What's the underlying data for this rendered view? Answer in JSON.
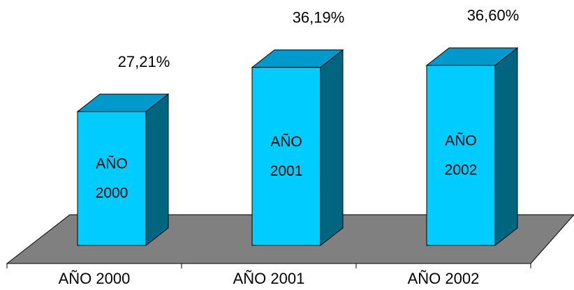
{
  "chart_data": {
    "type": "bar3d",
    "categories": [
      "AÑO 2000",
      "AÑO 2001",
      "AÑO 2002"
    ],
    "values": [
      27.21,
      36.19,
      36.6
    ],
    "value_labels": [
      "27,21%",
      "36,19%",
      "36,60%"
    ],
    "bar_labels": [
      [
        "AÑO",
        "2000"
      ],
      [
        "AÑO",
        "2001"
      ],
      [
        "AÑO",
        "2002"
      ]
    ],
    "color": "#00ccff"
  }
}
